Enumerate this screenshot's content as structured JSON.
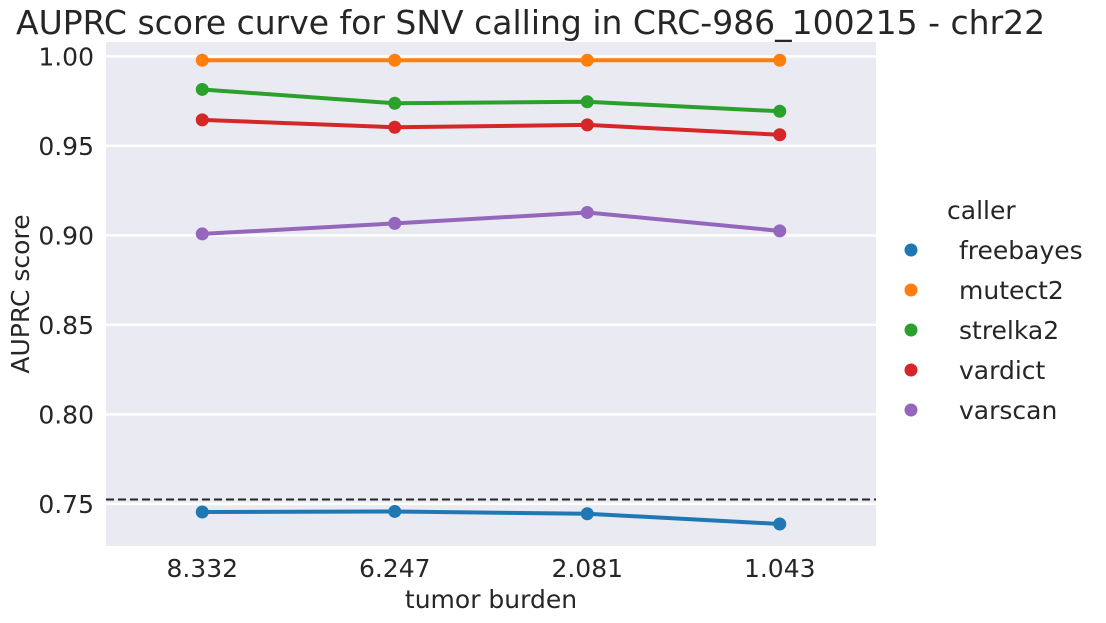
{
  "chart_data": {
    "type": "line",
    "title": "AUPRC score curve for SNV calling in CRC-986_100215 - chr22",
    "xlabel": "tumor burden",
    "ylabel": "AUPRC score",
    "categories": [
      "8.332",
      "6.247",
      "2.081",
      "1.043"
    ],
    "ylim": [
      0.7265,
      1.008
    ],
    "yticks": [
      "0.75",
      "0.80",
      "0.85",
      "0.90",
      "0.95",
      "1.00"
    ],
    "grid": true,
    "reference_line": {
      "y": 0.7525,
      "style": "dashed",
      "color": "#262626"
    },
    "legend": {
      "title": "caller",
      "placement": "right"
    },
    "series": [
      {
        "name": "freebayes",
        "color": "#1f77b4",
        "values": [
          0.7455,
          0.7458,
          0.7445,
          0.7388
        ]
      },
      {
        "name": "mutect2",
        "color": "#ff7f0e",
        "values": [
          0.9978,
          0.9978,
          0.9978,
          0.9978
        ]
      },
      {
        "name": "strelka2",
        "color": "#2ca02c",
        "values": [
          0.9815,
          0.9738,
          0.9746,
          0.9693
        ]
      },
      {
        "name": "vardict",
        "color": "#d62728",
        "values": [
          0.9645,
          0.9604,
          0.9617,
          0.9562
        ]
      },
      {
        "name": "varscan",
        "color": "#9467bd",
        "values": [
          0.9008,
          0.9067,
          0.9128,
          0.9025
        ]
      }
    ]
  }
}
